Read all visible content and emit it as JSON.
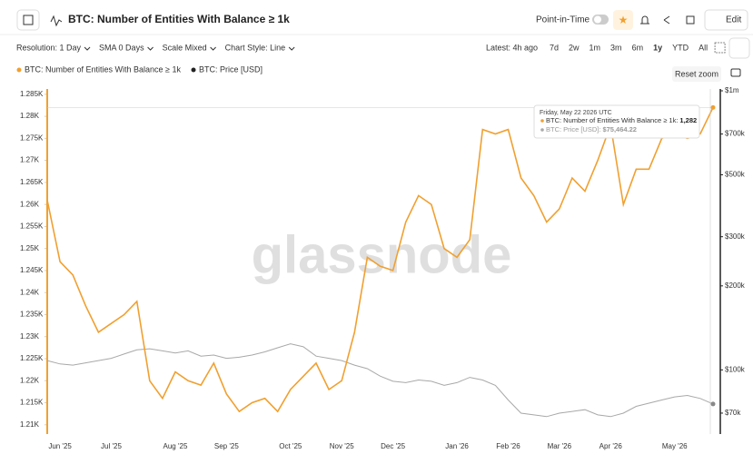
{
  "header": {
    "title": "BTC: Number of Entities With Balance ≥ 1k",
    "point_in_time": "Point-in-Time",
    "edit": "Edit"
  },
  "toolbar": {
    "items": [
      "Resolution: 1 Day",
      "SMA 0 Days",
      "Scale Mixed",
      "Chart Style: Line"
    ],
    "latest": "Latest: 4h ago",
    "ranges": [
      "7d",
      "2w",
      "1m",
      "3m",
      "6m",
      "1y",
      "YTD",
      "All"
    ],
    "reset_zoom": "Reset zoom"
  },
  "chart_data": {
    "type": "line",
    "watermark": "glassnode",
    "categories": [
      null,
      "Jun '25",
      null,
      null,
      null,
      "Jul '25",
      null,
      null,
      null,
      null,
      "Aug '25",
      null,
      null,
      null,
      "Sep '25",
      null,
      null,
      null,
      null,
      "Oct '25",
      null,
      null,
      null,
      "Nov '25",
      null,
      null,
      null,
      "Dec '25",
      null,
      null,
      null,
      null,
      "Jan '26",
      null,
      null,
      null,
      "Feb '26",
      null,
      null,
      null,
      "Mar '26",
      null,
      null,
      null,
      "Apr '26",
      null,
      null,
      null,
      null,
      "May '26",
      null,
      null,
      null
    ],
    "series": [
      {
        "name": "BTC: Number of Entities With Balance ≥ 1k",
        "color": "#f0a030",
        "axis": "y",
        "values": [
          1261,
          1247,
          1244,
          1237,
          1231,
          1233,
          1235,
          1238,
          1220,
          1216,
          1222,
          1220,
          1219,
          1224,
          1217,
          1213,
          1215,
          1216,
          1213,
          1218,
          1221,
          1224,
          1218,
          1220,
          1231,
          1248,
          1246,
          1245,
          1256,
          1262,
          1260,
          1250,
          1248,
          1252,
          1277,
          1276,
          1277,
          1266,
          1262,
          1256,
          1259,
          1266,
          1263,
          1270,
          1278,
          1260,
          1268,
          1268,
          1275,
          1276,
          1275,
          1276,
          1282
        ]
      },
      {
        "name": "BTC: Price [USD]",
        "color": "#a8a8a8",
        "axis": "y2",
        "values": [
          108000,
          105000,
          104000,
          106000,
          108000,
          110000,
          114000,
          118000,
          119000,
          117000,
          115000,
          117000,
          112000,
          113000,
          110000,
          111000,
          113000,
          116000,
          120000,
          124000,
          121000,
          112000,
          110000,
          108000,
          104000,
          101000,
          95000,
          91000,
          90000,
          92000,
          91000,
          88000,
          90000,
          94000,
          92000,
          88000,
          78000,
          70000,
          69000,
          68000,
          70000,
          71000,
          72000,
          69000,
          68000,
          70000,
          74000,
          76000,
          78000,
          80000,
          81000,
          79000,
          75464.22
        ]
      }
    ],
    "ylim": [
      1207.9,
      1286.2
    ],
    "yticks": [
      {
        "value": 1210,
        "label": "1.21K"
      },
      {
        "value": 1215,
        "label": "1.215K"
      },
      {
        "value": 1220,
        "label": "1.22K"
      },
      {
        "value": 1225,
        "label": "1.225K"
      },
      {
        "value": 1230,
        "label": "1.23K"
      },
      {
        "value": 1235,
        "label": "1.235K"
      },
      {
        "value": 1240,
        "label": "1.24K"
      },
      {
        "value": 1245,
        "label": "1.245K"
      },
      {
        "value": 1250,
        "label": "1.25K"
      },
      {
        "value": 1255,
        "label": "1.255K"
      },
      {
        "value": 1260,
        "label": "1.26K"
      },
      {
        "value": 1265,
        "label": "1.265K"
      },
      {
        "value": 1270,
        "label": "1.27K"
      },
      {
        "value": 1275,
        "label": "1.275K"
      },
      {
        "value": 1280,
        "label": "1.28K"
      },
      {
        "value": 1285,
        "label": "1.285K"
      }
    ],
    "y2lim": [
      58900,
      1015000
    ],
    "y2log": true,
    "y2ticks": [
      {
        "value": 70000,
        "label": "$70k"
      },
      {
        "value": 100000,
        "label": "$100k"
      },
      {
        "value": 200000,
        "label": "$200k"
      },
      {
        "value": 300000,
        "label": "$300k"
      },
      {
        "value": 500000,
        "label": "$500k"
      },
      {
        "value": 700000,
        "label": "$700k"
      },
      {
        "value": 1000000,
        "label": "$1m"
      }
    ],
    "grid": false,
    "tooltip": {
      "date": "Friday, May 22 2026 UTC",
      "entries": [
        {
          "name": "BTC: Number of Entities With Balance ≥ 1k:",
          "value": "1,282"
        },
        {
          "name": "BTC: Price [USD]:",
          "value": "$75,464.22"
        }
      ]
    }
  }
}
